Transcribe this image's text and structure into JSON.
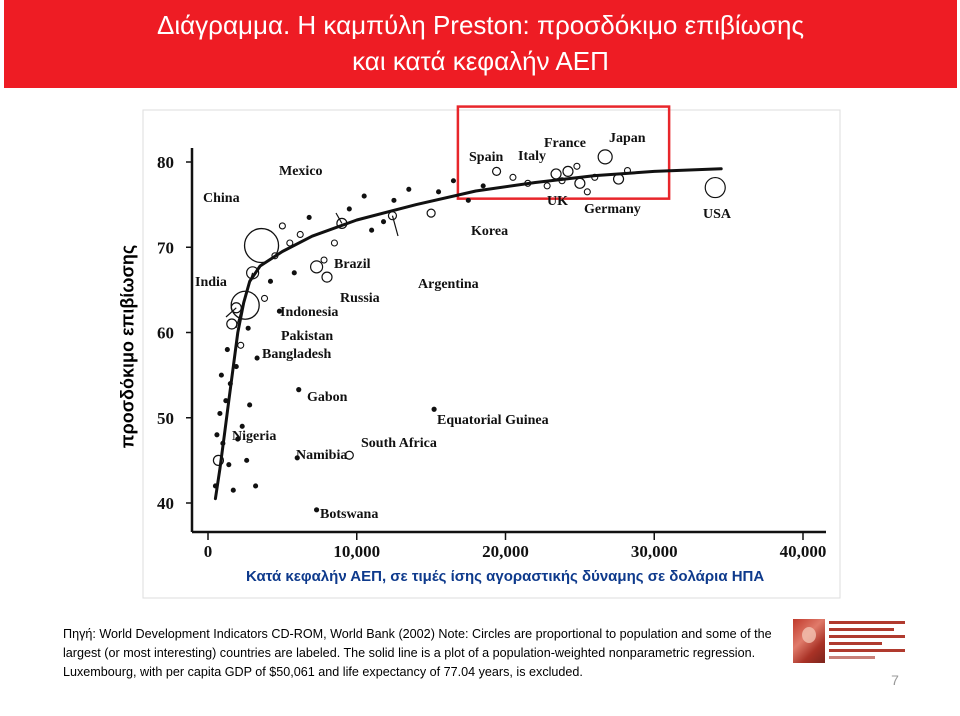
{
  "slide": {
    "title_line1": "Διάγραμμα. Η καμπύλη Preston: προσδόκιμο επιβίωσης",
    "title_line2": "και κατά κεφαλήν ΑΕΠ",
    "title_bar_color": "#ee1c24",
    "y_axis_label": "προσδόκιμο επιβίωσης",
    "x_axis_label": "Κατά κεφαλήν ΑΕΠ, σε τιμές ίσης αγοραστικής δύναμης σε δολάρια ΗΠΑ",
    "source_text": "Πηγή: World Development Indicators CD-ROM, World Bank (2002) Note: Circles are proportional to population and some of the largest (or most interesting) countries are labeled. The solid line is a plot of a population-weighted nonparametric regression. Luxembourg, with per capita GDP of $50,061 and life expectancy of 77.04 years, is excluded.",
    "page_number": "7",
    "highlight_color": "#e8262b",
    "label_color": "#0e3a8c"
  },
  "chart_data": {
    "type": "scatter",
    "xlim": [
      0,
      40000
    ],
    "ylim": [
      37,
      83
    ],
    "x_ticks": [
      0,
      10000,
      20000,
      30000,
      40000
    ],
    "x_tick_labels": [
      "0",
      "10,000",
      "20,000",
      "30,000",
      "40,000"
    ],
    "y_ticks": [
      40,
      50,
      60,
      70,
      80
    ],
    "y_tick_labels": [
      "40",
      "50",
      "60",
      "70",
      "80"
    ],
    "grid": false,
    "highlight_box": {
      "x": [
        16800,
        31000
      ],
      "y": [
        75.7,
        86.5
      ]
    },
    "regression_curve": [
      {
        "x": 500,
        "y": 40.5
      },
      {
        "x": 800,
        "y": 44
      },
      {
        "x": 1100,
        "y": 48
      },
      {
        "x": 1400,
        "y": 52
      },
      {
        "x": 1700,
        "y": 56
      },
      {
        "x": 2000,
        "y": 60
      },
      {
        "x": 2400,
        "y": 63.5
      },
      {
        "x": 2800,
        "y": 66
      },
      {
        "x": 3500,
        "y": 67.8
      },
      {
        "x": 5000,
        "y": 69.5
      },
      {
        "x": 7000,
        "y": 71.3
      },
      {
        "x": 10000,
        "y": 73.2
      },
      {
        "x": 14000,
        "y": 75
      },
      {
        "x": 18000,
        "y": 76.6
      },
      {
        "x": 22000,
        "y": 77.6
      },
      {
        "x": 26000,
        "y": 78.4
      },
      {
        "x": 30000,
        "y": 78.9
      },
      {
        "x": 34500,
        "y": 79.2
      }
    ],
    "labeled_points": [
      {
        "name": "China",
        "x": 3600,
        "y": 70.2,
        "r": 17
      },
      {
        "name": "India",
        "x": 2500,
        "y": 63.2,
        "r": 14
      },
      {
        "name": "Mexico",
        "x": 9000,
        "y": 72.8,
        "r": 5
      },
      {
        "name": "Brazil",
        "x": 7300,
        "y": 67.7,
        "r": 6
      },
      {
        "name": "Russia",
        "x": 8000,
        "y": 66.5,
        "r": 5
      },
      {
        "name": "Indonesia",
        "x": 3000,
        "y": 67.0,
        "r": 6
      },
      {
        "name": "Pakistan",
        "x": 1900,
        "y": 62.9,
        "r": 5
      },
      {
        "name": "Bangladesh",
        "x": 1600,
        "y": 61.0,
        "r": 5
      },
      {
        "name": "Argentina",
        "x": 12400,
        "y": 73.7,
        "r": 4
      },
      {
        "name": "Korea",
        "x": 15000,
        "y": 74.0,
        "r": 4
      },
      {
        "name": "Gabon",
        "x": 6100,
        "y": 53.3,
        "r": 2
      },
      {
        "name": "Equatorial Guinea",
        "x": 15200,
        "y": 51.0,
        "r": 2
      },
      {
        "name": "South Africa",
        "x": 9500,
        "y": 45.6,
        "r": 4
      },
      {
        "name": "Namibia",
        "x": 6000,
        "y": 45.3,
        "r": 2
      },
      {
        "name": "Nigeria",
        "x": 700,
        "y": 45.0,
        "r": 5
      },
      {
        "name": "Botswana",
        "x": 7300,
        "y": 39.2,
        "r": 2
      },
      {
        "name": "Spain",
        "x": 19400,
        "y": 78.9,
        "r": 4
      },
      {
        "name": "Italy",
        "x": 23400,
        "y": 78.6,
        "r": 5
      },
      {
        "name": "France",
        "x": 24200,
        "y": 78.9,
        "r": 5
      },
      {
        "name": "Japan",
        "x": 26700,
        "y": 80.6,
        "r": 7
      },
      {
        "name": "UK",
        "x": 25000,
        "y": 77.5,
        "r": 5
      },
      {
        "name": "Germany",
        "x": 27600,
        "y": 78.0,
        "r": 5
      },
      {
        "name": "USA",
        "x": 34100,
        "y": 77.0,
        "r": 10
      }
    ],
    "other_points": [
      {
        "x": 900,
        "y": 55.0,
        "r": 2
      },
      {
        "x": 1300,
        "y": 58.0,
        "r": 2
      },
      {
        "x": 800,
        "y": 50.5,
        "r": 2
      },
      {
        "x": 600,
        "y": 48.0,
        "r": 2
      },
      {
        "x": 1200,
        "y": 52.0,
        "r": 2
      },
      {
        "x": 1500,
        "y": 54.0,
        "r": 2
      },
      {
        "x": 500,
        "y": 42.0,
        "r": 2
      },
      {
        "x": 1000,
        "y": 47.0,
        "r": 2
      },
      {
        "x": 2000,
        "y": 47.5,
        "r": 2
      },
      {
        "x": 2300,
        "y": 49.0,
        "r": 2
      },
      {
        "x": 2800,
        "y": 51.5,
        "r": 2
      },
      {
        "x": 2600,
        "y": 45.0,
        "r": 2
      },
      {
        "x": 3200,
        "y": 42.0,
        "r": 2
      },
      {
        "x": 1400,
        "y": 44.5,
        "r": 2
      },
      {
        "x": 1700,
        "y": 41.5,
        "r": 2
      },
      {
        "x": 4500,
        "y": 69.0,
        "r": 3
      },
      {
        "x": 5500,
        "y": 70.5,
        "r": 3
      },
      {
        "x": 6200,
        "y": 71.5,
        "r": 3
      },
      {
        "x": 5000,
        "y": 72.5,
        "r": 3
      },
      {
        "x": 6800,
        "y": 73.5,
        "r": 2
      },
      {
        "x": 4200,
        "y": 66.0,
        "r": 2
      },
      {
        "x": 8500,
        "y": 70.5,
        "r": 3
      },
      {
        "x": 9500,
        "y": 74.5,
        "r": 2
      },
      {
        "x": 11000,
        "y": 72.0,
        "r": 2
      },
      {
        "x": 10500,
        "y": 76.0,
        "r": 2
      },
      {
        "x": 12500,
        "y": 75.5,
        "r": 2
      },
      {
        "x": 13500,
        "y": 76.8,
        "r": 2
      },
      {
        "x": 15500,
        "y": 76.5,
        "r": 2
      },
      {
        "x": 16500,
        "y": 77.8,
        "r": 2
      },
      {
        "x": 18500,
        "y": 77.2,
        "r": 2
      },
      {
        "x": 20500,
        "y": 78.2,
        "r": 3
      },
      {
        "x": 21500,
        "y": 77.5,
        "r": 3
      },
      {
        "x": 22800,
        "y": 77.2,
        "r": 3
      },
      {
        "x": 23800,
        "y": 77.8,
        "r": 3
      },
      {
        "x": 24800,
        "y": 79.5,
        "r": 3
      },
      {
        "x": 26000,
        "y": 78.2,
        "r": 3
      },
      {
        "x": 28200,
        "y": 79.0,
        "r": 3
      },
      {
        "x": 25500,
        "y": 76.5,
        "r": 3
      },
      {
        "x": 17500,
        "y": 75.5,
        "r": 2
      },
      {
        "x": 7800,
        "y": 68.5,
        "r": 3
      },
      {
        "x": 3800,
        "y": 64.0,
        "r": 3
      },
      {
        "x": 2200,
        "y": 58.5,
        "r": 3
      },
      {
        "x": 1900,
        "y": 56.0,
        "r": 2
      },
      {
        "x": 2700,
        "y": 60.5,
        "r": 2
      },
      {
        "x": 4800,
        "y": 62.5,
        "r": 2
      },
      {
        "x": 5800,
        "y": 67.0,
        "r": 2
      },
      {
        "x": 3300,
        "y": 57.0,
        "r": 2
      },
      {
        "x": 11800,
        "y": 73.0,
        "r": 2
      }
    ]
  }
}
